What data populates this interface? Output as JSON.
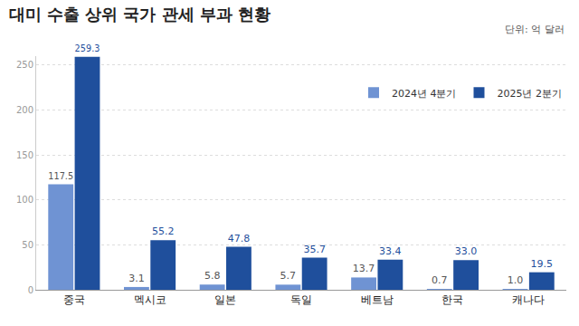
{
  "chart_data": {
    "type": "bar",
    "title": "대미 수출 상위 국가 관세 부과 현황",
    "subtitle": "단위: 억 달러",
    "categories": [
      "중국",
      "멕시코",
      "일본",
      "독일",
      "베트남",
      "한국",
      "캐나다"
    ],
    "series": [
      {
        "name": "2024년 4분기",
        "color": "#6f93d3",
        "values": [
          117.5,
          3.1,
          5.8,
          5.7,
          13.7,
          0.7,
          1.0
        ],
        "value_labels": [
          "117.5",
          "3.1",
          "5.8",
          "5.7",
          "13.7",
          "0.7",
          "1.0"
        ]
      },
      {
        "name": "2025년 2분기",
        "color": "#1f4f9c",
        "values": [
          259.3,
          55.2,
          47.8,
          35.7,
          33.4,
          33.0,
          19.5
        ],
        "value_labels": [
          "259.3",
          "55.2",
          "47.8",
          "35.7",
          "33.4",
          "33.0",
          "19.5"
        ]
      }
    ],
    "ylim": [
      0,
      260
    ],
    "yticks": [
      0,
      50,
      100,
      150,
      200,
      250
    ],
    "grid": true,
    "legend": "top right",
    "data_labels": true
  }
}
